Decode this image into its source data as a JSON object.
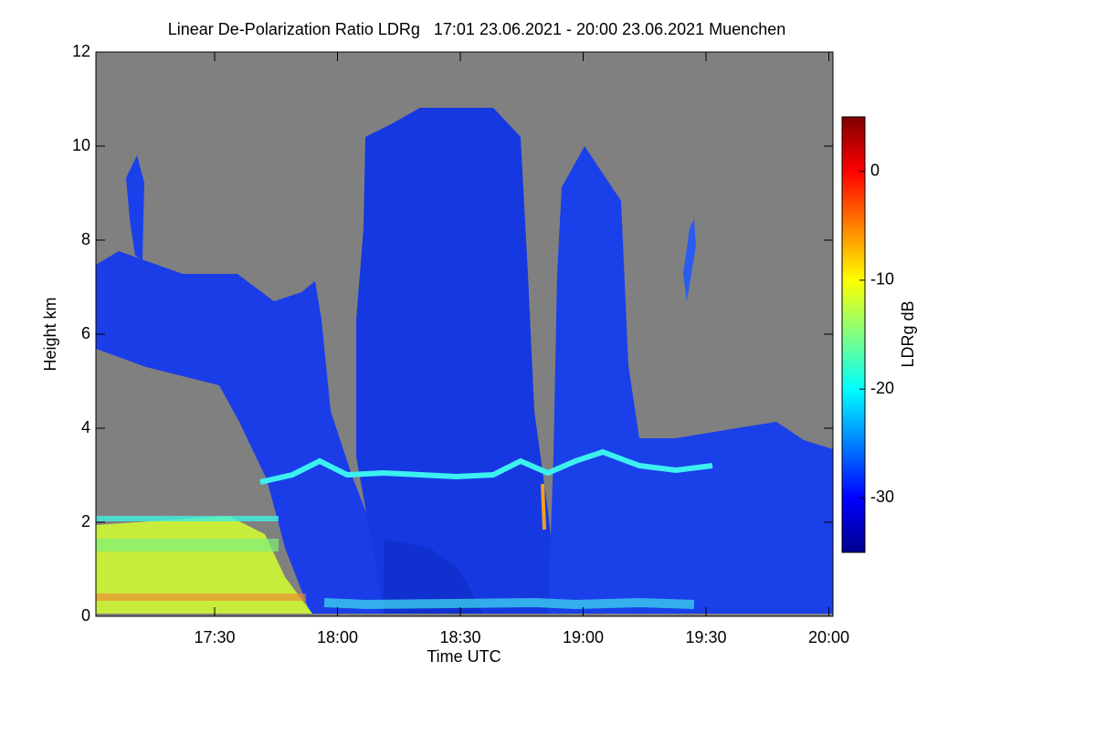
{
  "chart_data": {
    "type": "heatmap",
    "title": "Linear De-Polarization Ratio LDRg   17:01 23.06.2021 - 20:00 23.06.2021 Muenchen",
    "x_label": "Time UTC",
    "y_label": "Height km",
    "colorbar_label": "LDRg dB",
    "xlim": [
      1021,
      1201
    ],
    "xticks": [
      {
        "value": 1050,
        "label": "17:30"
      },
      {
        "value": 1080,
        "label": "18:00"
      },
      {
        "value": 1110,
        "label": "18:30"
      },
      {
        "value": 1140,
        "label": "19:00"
      },
      {
        "value": 1170,
        "label": "19:30"
      },
      {
        "value": 1200,
        "label": "20:00"
      }
    ],
    "ylim": [
      0,
      12
    ],
    "yticks": [
      0,
      2,
      4,
      6,
      8,
      10,
      12
    ],
    "clim": [
      -35,
      5
    ],
    "cticks": [
      -30,
      -20,
      -10,
      0
    ],
    "colormap": [
      "#00008f",
      "#0000ff",
      "#0080ff",
      "#00ffff",
      "#80ff80",
      "#ffff00",
      "#ff8000",
      "#ff0000",
      "#800000"
    ],
    "background_color": "#808080"
  }
}
